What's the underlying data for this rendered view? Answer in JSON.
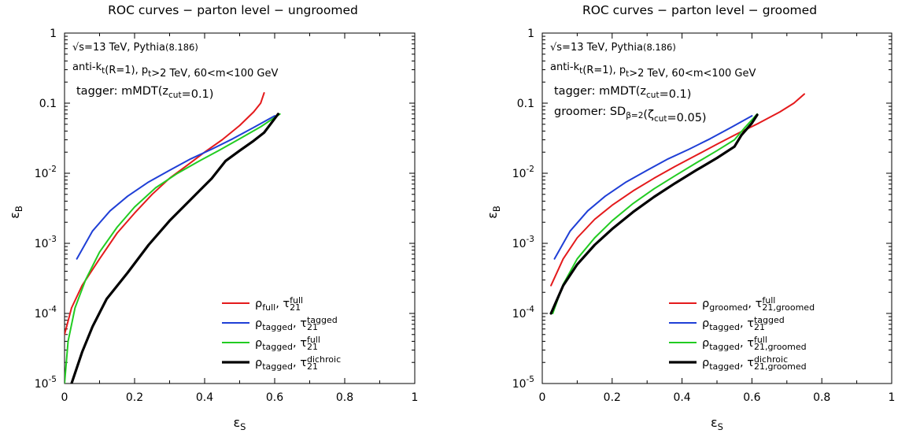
{
  "chart_data": [
    {
      "type": "line",
      "title": "ROC curves − parton level − ungroomed",
      "xlabel": "ε",
      "xlabel_sub": "S",
      "ylabel": "ε",
      "ylabel_sub": "B",
      "xlim": [
        0,
        1
      ],
      "ylim": [
        1e-05,
        1
      ],
      "yscale": "log",
      "x_ticks": [
        "0",
        "0.2",
        "0.4",
        "0.6",
        "0.8",
        "1"
      ],
      "y_ticks": [
        {
          "base": "1",
          "exp": ""
        },
        {
          "base": "0.1",
          "exp": ""
        },
        {
          "base": "10",
          "exp": "-2"
        },
        {
          "base": "10",
          "exp": "-3"
        },
        {
          "base": "10",
          "exp": "-4"
        },
        {
          "base": "10",
          "exp": "-5"
        }
      ],
      "grid": false,
      "legend_position": "bottom-right",
      "annotations": [
        {
          "parts": [
            [
              "√s=13 TeV, Pythia",
              ""
            ],
            [
              "(8.186)",
              "small"
            ]
          ]
        },
        {
          "parts": [
            [
              "anti-k",
              ""
            ],
            [
              "t",
              "sub"
            ],
            [
              "(R=1), p",
              ""
            ],
            [
              "t",
              "sub"
            ],
            [
              ">2 TeV, 60<m<100 GeV",
              ""
            ]
          ]
        },
        {
          "parts": [
            [
              "tagger: mMDT(z",
              ""
            ],
            [
              "cut",
              "sub"
            ],
            [
              "=0.1)",
              ""
            ]
          ]
        }
      ],
      "series": [
        {
          "name": "ρ_full, τ_21^full",
          "legend": {
            "rho": "ρ",
            "rho_sub": "full",
            "tau": "τ",
            "tau_sub": "21",
            "tau_sup": "full"
          },
          "color": "#e41a1c",
          "width": 2,
          "x": [
            0.0,
            0.02,
            0.05,
            0.1,
            0.15,
            0.2,
            0.25,
            0.3,
            0.35,
            0.4,
            0.45,
            0.5,
            0.54,
            0.56,
            0.57
          ],
          "y": [
            5e-05,
            0.00012,
            0.00025,
            0.0006,
            0.0014,
            0.0027,
            0.005,
            0.0085,
            0.013,
            0.02,
            0.03,
            0.048,
            0.075,
            0.1,
            0.14
          ]
        },
        {
          "name": "ρ_tagged, τ_21^tagged",
          "legend": {
            "rho": "ρ",
            "rho_sub": "tagged",
            "tau": "τ",
            "tau_sub": "21",
            "tau_sup": "tagged"
          },
          "color": "#1f3fd6",
          "width": 2,
          "x": [
            0.035,
            0.08,
            0.13,
            0.18,
            0.24,
            0.3,
            0.36,
            0.42,
            0.48,
            0.54,
            0.6
          ],
          "y": [
            0.0006,
            0.0015,
            0.0029,
            0.0047,
            0.0075,
            0.011,
            0.016,
            0.022,
            0.031,
            0.045,
            0.066
          ]
        },
        {
          "name": "ρ_tagged, τ_21^full",
          "legend": {
            "rho": "ρ",
            "rho_sub": "tagged",
            "tau": "τ",
            "tau_sub": "21",
            "tau_sup": "full"
          },
          "color": "#22cc22",
          "width": 2,
          "x": [
            0.0,
            0.01,
            0.03,
            0.06,
            0.1,
            0.15,
            0.2,
            0.26,
            0.32,
            0.38,
            0.44,
            0.5,
            0.56,
            0.615
          ],
          "y": [
            1e-05,
            4e-05,
            0.00012,
            0.0003,
            0.00075,
            0.0017,
            0.0033,
            0.0062,
            0.0098,
            0.0145,
            0.021,
            0.031,
            0.046,
            0.07
          ]
        },
        {
          "name": "ρ_tagged, τ_21^dichroic",
          "legend": {
            "rho": "ρ",
            "rho_sub": "tagged",
            "tau": "τ",
            "tau_sub": "21",
            "tau_sup": "dichroic"
          },
          "color": "#000000",
          "width": 3.2,
          "x": [
            0.02,
            0.05,
            0.08,
            0.12,
            0.18,
            0.24,
            0.3,
            0.36,
            0.42,
            0.46,
            0.5,
            0.54,
            0.57,
            0.61
          ],
          "y": [
            1e-05,
            2.8e-05,
            6.5e-05,
            0.00016,
            0.00038,
            0.00095,
            0.0021,
            0.0042,
            0.0084,
            0.015,
            0.021,
            0.029,
            0.038,
            0.07
          ]
        }
      ]
    },
    {
      "type": "line",
      "title": "ROC curves − parton level − groomed",
      "xlabel": "ε",
      "xlabel_sub": "S",
      "ylabel": "ε",
      "ylabel_sub": "B",
      "xlim": [
        0,
        1
      ],
      "ylim": [
        1e-05,
        1
      ],
      "yscale": "log",
      "x_ticks": [
        "0",
        "0.2",
        "0.4",
        "0.6",
        "0.8",
        "1"
      ],
      "y_ticks": [
        {
          "base": "1",
          "exp": ""
        },
        {
          "base": "0.1",
          "exp": ""
        },
        {
          "base": "10",
          "exp": "-2"
        },
        {
          "base": "10",
          "exp": "-3"
        },
        {
          "base": "10",
          "exp": "-4"
        },
        {
          "base": "10",
          "exp": "-5"
        }
      ],
      "grid": false,
      "legend_position": "bottom-right",
      "annotations": [
        {
          "parts": [
            [
              "√s=13 TeV, Pythia",
              ""
            ],
            [
              "(8.186)",
              "small"
            ]
          ]
        },
        {
          "parts": [
            [
              "anti-k",
              ""
            ],
            [
              "t",
              "sub"
            ],
            [
              "(R=1), p",
              ""
            ],
            [
              "t",
              "sub"
            ],
            [
              ">2 TeV, 60<m<100 GeV",
              ""
            ]
          ]
        },
        {
          "parts": [
            [
              "tagger: mMDT(z",
              ""
            ],
            [
              "cut",
              "sub"
            ],
            [
              "=0.1)",
              ""
            ]
          ]
        },
        {
          "parts": [
            [
              "groomer: SD",
              ""
            ],
            [
              "β=2",
              "sub"
            ],
            [
              "(ζ",
              ""
            ],
            [
              "cut",
              "sub"
            ],
            [
              "=0.05)",
              ""
            ]
          ]
        }
      ],
      "series": [
        {
          "name": "ρ_groomed, τ_21,groomed^full",
          "legend": {
            "rho": "ρ",
            "rho_sub": "groomed",
            "tau": "τ",
            "tau_sub": "21,groomed",
            "tau_sup": "full"
          },
          "color": "#e41a1c",
          "width": 2,
          "x": [
            0.025,
            0.06,
            0.1,
            0.15,
            0.2,
            0.26,
            0.32,
            0.38,
            0.44,
            0.5,
            0.56,
            0.62,
            0.68,
            0.72,
            0.75
          ],
          "y": [
            0.00025,
            0.0006,
            0.0012,
            0.0022,
            0.0035,
            0.0056,
            0.0085,
            0.0125,
            0.018,
            0.026,
            0.037,
            0.052,
            0.075,
            0.1,
            0.135
          ]
        },
        {
          "name": "ρ_tagged, τ_21^tagged",
          "legend": {
            "rho": "ρ",
            "rho_sub": "tagged",
            "tau": "τ",
            "tau_sub": "21",
            "tau_sup": "tagged"
          },
          "color": "#1f3fd6",
          "width": 2,
          "x": [
            0.035,
            0.08,
            0.13,
            0.18,
            0.24,
            0.3,
            0.36,
            0.42,
            0.48,
            0.54,
            0.6
          ],
          "y": [
            0.0006,
            0.0015,
            0.0029,
            0.0047,
            0.0075,
            0.011,
            0.016,
            0.022,
            0.031,
            0.045,
            0.066
          ]
        },
        {
          "name": "ρ_tagged, τ_21,groomed^full",
          "legend": {
            "rho": "ρ",
            "rho_sub": "tagged",
            "tau": "τ",
            "tau_sub": "21,groomed",
            "tau_sup": "full"
          },
          "color": "#22cc22",
          "width": 2,
          "x": [
            0.03,
            0.06,
            0.1,
            0.15,
            0.2,
            0.26,
            0.32,
            0.38,
            0.44,
            0.5,
            0.55,
            0.58,
            0.615
          ],
          "y": [
            0.0001,
            0.00026,
            0.0006,
            0.0012,
            0.0021,
            0.0037,
            0.006,
            0.0092,
            0.014,
            0.021,
            0.03,
            0.045,
            0.07
          ]
        },
        {
          "name": "ρ_tagged, τ_21,groomed^dichroic",
          "legend": {
            "rho": "ρ",
            "rho_sub": "tagged",
            "tau": "τ",
            "tau_sub": "21,groomed",
            "tau_sup": "dichroic"
          },
          "color": "#000000",
          "width": 3.2,
          "x": [
            0.025,
            0.06,
            0.1,
            0.15,
            0.2,
            0.26,
            0.32,
            0.38,
            0.44,
            0.5,
            0.55,
            0.57,
            0.6,
            0.615
          ],
          "y": [
            0.0001,
            0.00025,
            0.0005,
            0.00095,
            0.0016,
            0.0028,
            0.0046,
            0.0072,
            0.011,
            0.0165,
            0.024,
            0.035,
            0.052,
            0.068
          ]
        }
      ]
    }
  ]
}
